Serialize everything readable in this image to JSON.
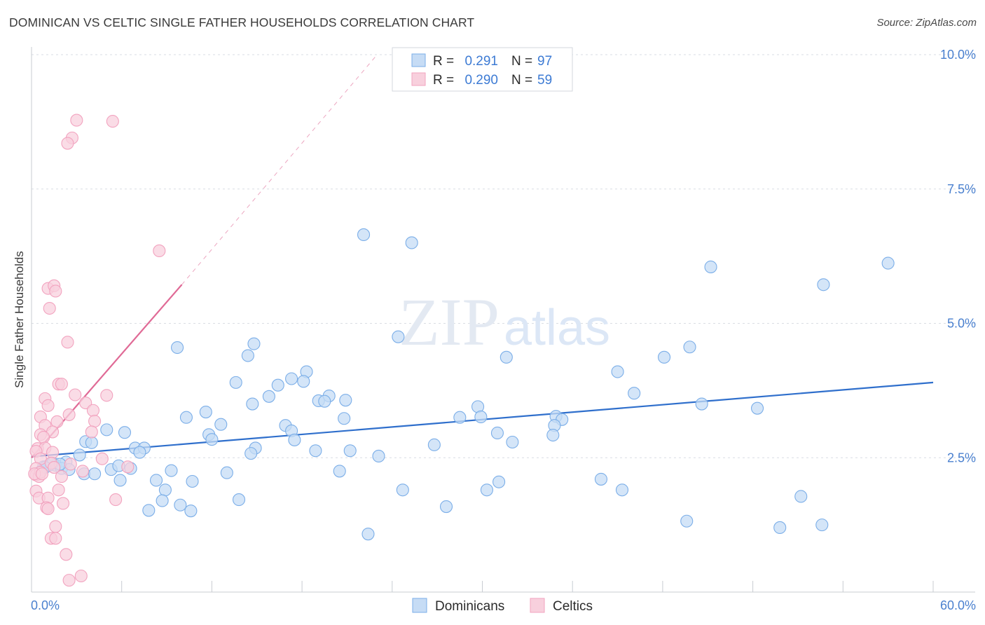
{
  "chart_data": {
    "type": "scatter",
    "title": "DOMINICAN VS CELTIC SINGLE FATHER HOUSEHOLDS CORRELATION CHART",
    "source": "Source: ZipAtlas.com",
    "xlabel": "",
    "ylabel": "Single Father Households",
    "xlim": [
      0,
      60
    ],
    "ylim": [
      0,
      10
    ],
    "x_tick_labels": [
      "0.0%",
      "60.0%"
    ],
    "y_ticks": [
      2.5,
      5.0,
      7.5,
      10.0
    ],
    "y_tick_labels": [
      "2.5%",
      "5.0%",
      "7.5%",
      "10.0%"
    ],
    "grid": true,
    "watermark": "ZIPatlas",
    "legend": [
      {
        "series": "Dominicans",
        "r_label": "R =",
        "r_value": "0.291",
        "n_label": "N =",
        "n_value": "97"
      },
      {
        "series": "Celtics",
        "r_label": "R =",
        "r_value": "0.290",
        "n_label": "N =",
        "n_value": "59"
      }
    ],
    "series": [
      {
        "name": "Dominicans",
        "color": "#7baee8",
        "fill": "#c6dcf5",
        "line_color": "#2f6fcc",
        "trend": {
          "x0": 0,
          "y0": 2.52,
          "x1": 60,
          "y1": 3.9
        },
        "points": [
          [
            22.1,
            6.65
          ],
          [
            25.3,
            6.5
          ],
          [
            9.7,
            4.55
          ],
          [
            14.8,
            4.62
          ],
          [
            14.4,
            4.4
          ],
          [
            24.4,
            4.75
          ],
          [
            31.6,
            4.37
          ],
          [
            45.2,
            6.05
          ],
          [
            52.7,
            5.72
          ],
          [
            57.0,
            6.12
          ],
          [
            43.8,
            4.56
          ],
          [
            42.1,
            4.37
          ],
          [
            39.0,
            4.1
          ],
          [
            40.1,
            3.7
          ],
          [
            13.6,
            3.9
          ],
          [
            16.4,
            3.85
          ],
          [
            17.3,
            3.97
          ],
          [
            18.3,
            4.1
          ],
          [
            18.1,
            3.92
          ],
          [
            15.8,
            3.64
          ],
          [
            14.7,
            3.5
          ],
          [
            19.1,
            3.56
          ],
          [
            19.8,
            3.65
          ],
          [
            19.5,
            3.55
          ],
          [
            20.9,
            3.57
          ],
          [
            11.6,
            3.35
          ],
          [
            10.3,
            3.25
          ],
          [
            12.6,
            3.12
          ],
          [
            16.9,
            3.1
          ],
          [
            17.3,
            3.0
          ],
          [
            20.8,
            3.23
          ],
          [
            28.5,
            3.25
          ],
          [
            29.7,
            3.45
          ],
          [
            29.9,
            3.26
          ],
          [
            34.9,
            3.27
          ],
          [
            35.3,
            3.21
          ],
          [
            44.6,
            3.5
          ],
          [
            48.3,
            3.42
          ],
          [
            34.8,
            3.1
          ],
          [
            34.7,
            2.92
          ],
          [
            31.0,
            2.96
          ],
          [
            32.0,
            2.79
          ],
          [
            26.8,
            2.74
          ],
          [
            17.5,
            2.83
          ],
          [
            11.8,
            2.93
          ],
          [
            12.0,
            2.84
          ],
          [
            6.2,
            2.97
          ],
          [
            5.0,
            3.02
          ],
          [
            3.6,
            2.8
          ],
          [
            4.0,
            2.78
          ],
          [
            3.2,
            2.55
          ],
          [
            2.3,
            2.42
          ],
          [
            1.6,
            2.36
          ],
          [
            1.1,
            2.35
          ],
          [
            0.8,
            2.33
          ],
          [
            2.0,
            2.3
          ],
          [
            0.5,
            2.22
          ],
          [
            3.5,
            2.2
          ],
          [
            4.2,
            2.2
          ],
          [
            5.3,
            2.28
          ],
          [
            5.8,
            2.35
          ],
          [
            6.6,
            2.3
          ],
          [
            6.9,
            2.68
          ],
          [
            7.5,
            2.68
          ],
          [
            7.2,
            2.6
          ],
          [
            14.9,
            2.68
          ],
          [
            14.6,
            2.58
          ],
          [
            18.9,
            2.63
          ],
          [
            21.2,
            2.63
          ],
          [
            23.1,
            2.53
          ],
          [
            20.5,
            2.25
          ],
          [
            13.0,
            2.22
          ],
          [
            9.3,
            2.26
          ],
          [
            8.3,
            2.08
          ],
          [
            5.9,
            2.08
          ],
          [
            10.7,
            2.06
          ],
          [
            8.9,
            1.9
          ],
          [
            8.7,
            1.7
          ],
          [
            7.8,
            1.52
          ],
          [
            9.9,
            1.62
          ],
          [
            10.6,
            1.51
          ],
          [
            13.8,
            1.72
          ],
          [
            24.7,
            1.9
          ],
          [
            27.6,
            1.59
          ],
          [
            30.3,
            1.9
          ],
          [
            31.1,
            2.05
          ],
          [
            37.9,
            2.1
          ],
          [
            39.3,
            1.9
          ],
          [
            43.6,
            1.32
          ],
          [
            51.2,
            1.78
          ],
          [
            49.8,
            1.2
          ],
          [
            52.6,
            1.25
          ],
          [
            22.4,
            1.08
          ],
          [
            1.4,
            2.4
          ],
          [
            2.5,
            2.28
          ],
          [
            0.9,
            2.32
          ],
          [
            1.9,
            2.38
          ]
        ]
      },
      {
        "name": "Celtics",
        "color": "#f2a3bf",
        "fill": "#f8d0dd",
        "line_color": "#e06a96",
        "trend": {
          "x0": 0,
          "y0": 2.5,
          "x1": 10,
          "y1": 5.72
        },
        "trend_dashed": {
          "x0": 10,
          "y0": 5.72,
          "x1": 23,
          "y1": 10.0
        },
        "points": [
          [
            3.0,
            8.78
          ],
          [
            5.4,
            8.76
          ],
          [
            2.7,
            8.45
          ],
          [
            2.4,
            8.35
          ],
          [
            8.5,
            6.35
          ],
          [
            1.1,
            5.65
          ],
          [
            1.5,
            5.7
          ],
          [
            1.6,
            5.6
          ],
          [
            1.2,
            5.28
          ],
          [
            2.4,
            4.65
          ],
          [
            1.8,
            3.87
          ],
          [
            2.0,
            3.87
          ],
          [
            2.9,
            3.67
          ],
          [
            5.0,
            3.66
          ],
          [
            0.9,
            3.6
          ],
          [
            1.1,
            3.47
          ],
          [
            3.6,
            3.52
          ],
          [
            4.1,
            3.38
          ],
          [
            0.6,
            3.26
          ],
          [
            2.5,
            3.3
          ],
          [
            0.9,
            3.1
          ],
          [
            1.7,
            3.17
          ],
          [
            4.2,
            3.18
          ],
          [
            1.4,
            2.98
          ],
          [
            4.0,
            2.98
          ],
          [
            0.6,
            2.93
          ],
          [
            0.8,
            2.88
          ],
          [
            0.4,
            2.67
          ],
          [
            0.9,
            2.68
          ],
          [
            0.3,
            2.62
          ],
          [
            1.4,
            2.6
          ],
          [
            4.7,
            2.48
          ],
          [
            0.6,
            2.48
          ],
          [
            1.3,
            2.4
          ],
          [
            2.6,
            2.38
          ],
          [
            3.4,
            2.25
          ],
          [
            0.3,
            2.3
          ],
          [
            0.3,
            2.18
          ],
          [
            0.5,
            2.15
          ],
          [
            0.6,
            2.23
          ],
          [
            2.0,
            2.15
          ],
          [
            6.4,
            2.33
          ],
          [
            0.3,
            1.88
          ],
          [
            0.5,
            1.75
          ],
          [
            1.1,
            1.75
          ],
          [
            1.8,
            1.9
          ],
          [
            2.1,
            1.65
          ],
          [
            5.6,
            1.72
          ],
          [
            1.0,
            1.57
          ],
          [
            1.1,
            1.55
          ],
          [
            1.6,
            1.22
          ],
          [
            1.3,
            1.0
          ],
          [
            1.6,
            1.0
          ],
          [
            2.3,
            0.7
          ],
          [
            2.5,
            0.22
          ],
          [
            3.3,
            0.3
          ],
          [
            0.2,
            2.2
          ],
          [
            0.7,
            2.2
          ],
          [
            1.5,
            2.32
          ]
        ]
      }
    ]
  }
}
